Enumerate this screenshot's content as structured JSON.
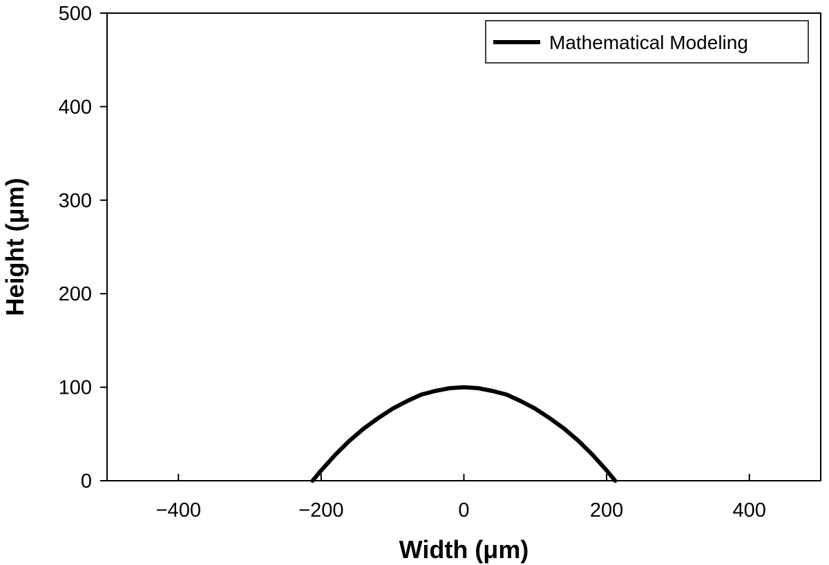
{
  "chart_data": {
    "type": "line",
    "title": "",
    "xlabel": "Width (μm)",
    "ylabel": "Height (μm)",
    "xlim": [
      -500,
      500
    ],
    "ylim": [
      0,
      500
    ],
    "xticks": [
      -400,
      -200,
      0,
      200,
      400
    ],
    "xtick_labels": [
      "−400",
      "−200",
      "0",
      "200",
      "400"
    ],
    "yticks": [
      0,
      100,
      200,
      300,
      400,
      500
    ],
    "ytick_labels": [
      "0",
      "100",
      "200",
      "300",
      "400",
      "500"
    ],
    "grid": false,
    "legend_position": "top-right",
    "series": [
      {
        "name": "Mathematical Modeling",
        "color": "#000000",
        "x": [
          -212,
          -200,
          -180,
          -160,
          -140,
          -120,
          -100,
          -80,
          -60,
          -40,
          -20,
          0,
          20,
          40,
          60,
          80,
          100,
          120,
          140,
          160,
          180,
          200,
          212
        ],
        "y": [
          0,
          11,
          28,
          43,
          56,
          67,
          77,
          85,
          92,
          96,
          99,
          100,
          99,
          96,
          92,
          85,
          77,
          67,
          56,
          43,
          28,
          11,
          0
        ]
      }
    ]
  }
}
